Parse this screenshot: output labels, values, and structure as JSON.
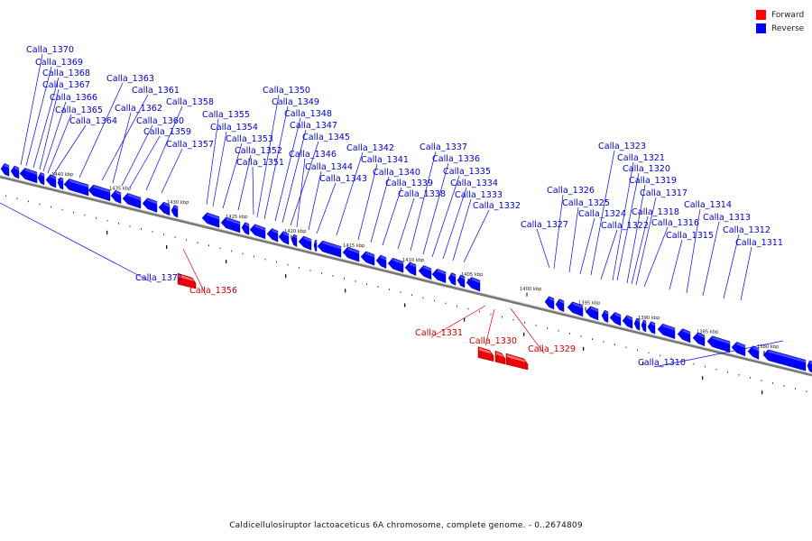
{
  "legend": {
    "forward_label": "Forward",
    "reverse_label": "Reverse",
    "forward_color": "#ff0000",
    "reverse_color": "#0000ff"
  },
  "caption": "Caldicellulosiruptor lactoaceticus 6A chromosome, complete genome. - 0..2674809",
  "ticks": [
    {
      "label": "1440 kbp"
    },
    {
      "label": "1435 kbp"
    },
    {
      "label": "1430 kbp"
    },
    {
      "label": "1425 kbp"
    },
    {
      "label": "1420 kbp"
    },
    {
      "label": "1415 kbp"
    },
    {
      "label": "1410 kbp"
    },
    {
      "label": "1405 kbp"
    },
    {
      "label": "1400 kbp"
    },
    {
      "label": "1395 kbp"
    },
    {
      "label": "1390 kbp"
    },
    {
      "label": "1385 kbp"
    },
    {
      "label": "1380 kbp"
    }
  ],
  "genes": [
    {
      "name": "Calla_1370",
      "strand": "reverse"
    },
    {
      "name": "Calla_1369",
      "strand": "reverse"
    },
    {
      "name": "Calla_1368",
      "strand": "reverse"
    },
    {
      "name": "Calla_1367",
      "strand": "reverse"
    },
    {
      "name": "Calla_1366",
      "strand": "reverse"
    },
    {
      "name": "Calla_1365",
      "strand": "reverse"
    },
    {
      "name": "Calla_1364",
      "strand": "reverse"
    },
    {
      "name": "Calla_1363",
      "strand": "reverse"
    },
    {
      "name": "Calla_1361",
      "strand": "reverse"
    },
    {
      "name": "Calla_1362",
      "strand": "reverse"
    },
    {
      "name": "Calla_1360",
      "strand": "reverse"
    },
    {
      "name": "Calla_1359",
      "strand": "reverse"
    },
    {
      "name": "Calla_1358",
      "strand": "reverse"
    },
    {
      "name": "Calla_1357",
      "strand": "reverse"
    },
    {
      "name": "Calla_1355",
      "strand": "reverse"
    },
    {
      "name": "Calla_1354",
      "strand": "reverse"
    },
    {
      "name": "Calla_1353",
      "strand": "reverse"
    },
    {
      "name": "Calla_1352",
      "strand": "reverse"
    },
    {
      "name": "Calla_1351",
      "strand": "reverse"
    },
    {
      "name": "Calla_1350",
      "strand": "reverse"
    },
    {
      "name": "Calla_1349",
      "strand": "reverse"
    },
    {
      "name": "Calla_1348",
      "strand": "reverse"
    },
    {
      "name": "Calla_1347",
      "strand": "reverse"
    },
    {
      "name": "Calla_1345",
      "strand": "reverse"
    },
    {
      "name": "Calla_1346",
      "strand": "reverse"
    },
    {
      "name": "Calla_1344",
      "strand": "reverse"
    },
    {
      "name": "Calla_1343",
      "strand": "reverse"
    },
    {
      "name": "Calla_1342",
      "strand": "reverse"
    },
    {
      "name": "Calla_1341",
      "strand": "reverse"
    },
    {
      "name": "Calla_1340",
      "strand": "reverse"
    },
    {
      "name": "Calla_1339",
      "strand": "reverse"
    },
    {
      "name": "Calla_1338",
      "strand": "reverse"
    },
    {
      "name": "Calla_1337",
      "strand": "reverse"
    },
    {
      "name": "Calla_1336",
      "strand": "reverse"
    },
    {
      "name": "Calla_1335",
      "strand": "reverse"
    },
    {
      "name": "Calla_1334",
      "strand": "reverse"
    },
    {
      "name": "Calla_1333",
      "strand": "reverse"
    },
    {
      "name": "Calla_1332",
      "strand": "reverse"
    },
    {
      "name": "Calla_1327",
      "strand": "reverse"
    },
    {
      "name": "Calla_1326",
      "strand": "reverse"
    },
    {
      "name": "Calla_1325",
      "strand": "reverse"
    },
    {
      "name": "Calla_1324",
      "strand": "reverse"
    },
    {
      "name": "Calla_1323",
      "strand": "reverse"
    },
    {
      "name": "Calla_1322",
      "strand": "reverse"
    },
    {
      "name": "Calla_1321",
      "strand": "reverse"
    },
    {
      "name": "Calla_1320",
      "strand": "reverse"
    },
    {
      "name": "Calla_1319",
      "strand": "reverse"
    },
    {
      "name": "Calla_1318",
      "strand": "reverse"
    },
    {
      "name": "Calla_1317",
      "strand": "reverse"
    },
    {
      "name": "Calla_1316",
      "strand": "reverse"
    },
    {
      "name": "Calla_1315",
      "strand": "reverse"
    },
    {
      "name": "Calla_1314",
      "strand": "reverse"
    },
    {
      "name": "Calla_1313",
      "strand": "reverse"
    },
    {
      "name": "Calla_1312",
      "strand": "reverse"
    },
    {
      "name": "Calla_1311",
      "strand": "reverse"
    },
    {
      "name": "Calla_1371",
      "strand": "reverse"
    },
    {
      "name": "Calla_1310",
      "strand": "reverse"
    },
    {
      "name": "Calla_1356",
      "strand": "forward"
    },
    {
      "name": "Calla_1331",
      "strand": "forward"
    },
    {
      "name": "Calla_1330",
      "strand": "forward"
    },
    {
      "name": "Calla_1329",
      "strand": "forward"
    }
  ]
}
